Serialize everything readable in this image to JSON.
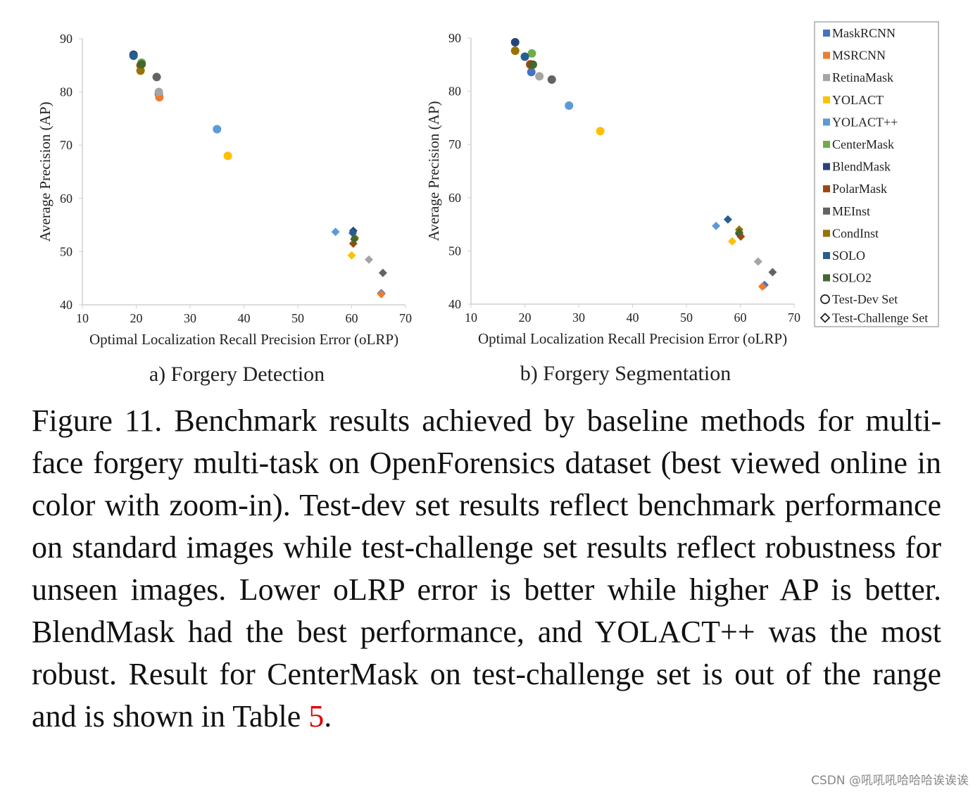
{
  "legend": {
    "series": [
      {
        "name": "MaskRCNN",
        "color": "#4472c4"
      },
      {
        "name": "MSRCNN",
        "color": "#ed7d31"
      },
      {
        "name": "RetinaMask",
        "color": "#a5a5a5"
      },
      {
        "name": "YOLACT",
        "color": "#ffc000"
      },
      {
        "name": "YOLACT++",
        "color": "#5b9bd5"
      },
      {
        "name": "CenterMask",
        "color": "#70ad47"
      },
      {
        "name": "BlendMask",
        "color": "#264478"
      },
      {
        "name": "PolarMask",
        "color": "#9e480e"
      },
      {
        "name": "MEInst",
        "color": "#636363"
      },
      {
        "name": "CondInst",
        "color": "#997300"
      },
      {
        "name": "SOLO",
        "color": "#255e91"
      },
      {
        "name": "SOLO2",
        "color": "#43682b"
      }
    ],
    "markers": [
      {
        "label": "Test-Dev Set",
        "shape": "circle"
      },
      {
        "label": "Test-Challenge Set",
        "shape": "diamond"
      }
    ]
  },
  "chart_data": [
    {
      "type": "scatter",
      "subtitle": "a) Forgery Detection",
      "xlabel": "Optimal Localization Recall Precision Error (oLRP)",
      "ylabel": "Average Precision (AP)",
      "xlim": [
        10,
        70
      ],
      "ylim": [
        40,
        90
      ],
      "xticks": [
        10,
        20,
        30,
        40,
        50,
        60,
        70
      ],
      "yticks": [
        40,
        50,
        60,
        70,
        80,
        90
      ],
      "series": [
        {
          "x": [
            24.2,
            65.5
          ],
          "values": [
            79.6,
            42.2
          ]
        },
        {
          "x": [
            24.3,
            65.5
          ],
          "values": [
            79,
            42
          ]
        },
        {
          "x": [
            24.2,
            63.2
          ],
          "values": [
            80,
            48.5
          ]
        },
        {
          "x": [
            37,
            60
          ],
          "values": [
            68,
            49.3
          ]
        },
        {
          "x": [
            35,
            57
          ],
          "values": [
            73,
            53.7
          ]
        },
        {
          "x": [
            21,
            null
          ],
          "values": [
            85.5,
            null
          ]
        },
        {
          "x": [
            19.5,
            60.3
          ],
          "values": [
            87,
            53.9
          ]
        },
        {
          "x": [
            20.8,
            60.3
          ],
          "values": [
            85,
            51.5
          ]
        },
        {
          "x": [
            23.8,
            65.8
          ],
          "values": [
            82.8,
            46
          ]
        },
        {
          "x": [
            20.8,
            60.6
          ],
          "values": [
            84,
            52.6
          ]
        },
        {
          "x": [
            19.5,
            60.2
          ],
          "values": [
            86.8,
            53.5
          ]
        },
        {
          "x": [
            21,
            60.5
          ],
          "values": [
            85.2,
            52.3
          ]
        }
      ]
    },
    {
      "type": "scatter",
      "subtitle": "b) Forgery Segmentation",
      "xlabel": "Optimal Localization Recall Precision Error (oLRP)",
      "ylabel": "Average Precision (AP)",
      "xlim": [
        10,
        70
      ],
      "ylim": [
        40,
        90
      ],
      "xticks": [
        10,
        20,
        30,
        40,
        50,
        60,
        70
      ],
      "yticks": [
        40,
        50,
        60,
        70,
        80,
        90
      ],
      "series": [
        {
          "x": [
            21.2,
            64.5
          ],
          "values": [
            83.6,
            43.6
          ]
        },
        {
          "x": [
            21,
            64.1
          ],
          "values": [
            85.1,
            43.3
          ]
        },
        {
          "x": [
            22.7,
            63.3
          ],
          "values": [
            82.8,
            48
          ]
        },
        {
          "x": [
            34,
            58.5
          ],
          "values": [
            72.5,
            51.8
          ]
        },
        {
          "x": [
            28.2,
            55.5
          ],
          "values": [
            77.3,
            54.7
          ]
        },
        {
          "x": [
            21.3,
            null
          ],
          "values": [
            87.1,
            null
          ]
        },
        {
          "x": [
            18.2,
            59.8
          ],
          "values": [
            89.2,
            53.2
          ]
        },
        {
          "x": [
            21,
            60.1
          ],
          "values": [
            85,
            52.7
          ]
        },
        {
          "x": [
            25,
            66
          ],
          "values": [
            82.2,
            46
          ]
        },
        {
          "x": [
            18.2,
            59.8
          ],
          "values": [
            87.6,
            54
          ]
        },
        {
          "x": [
            20,
            57.7
          ],
          "values": [
            86.5,
            55.9
          ]
        },
        {
          "x": [
            21.5,
            59.8
          ],
          "values": [
            85,
            53.5
          ]
        }
      ]
    }
  ],
  "caption": {
    "text": "Figure 11. Benchmark results achieved by baseline methods for multi-face forgery multi-task on OpenForensics dataset (best viewed online in color with zoom-in). Test-dev set results reflect benchmark performance on standard images while test-challenge set results reflect robustness for unseen images. Lower oLRP error is better while higher AP is better. BlendMask had the best performance, and YOLACT++ was the most robust. Result for CenterMask on test-challenge set is out of the range and is shown in Table ",
    "ref": "5",
    "end": "."
  },
  "watermark": "CSDN @吼吼吼哈哈哈诶诶诶"
}
